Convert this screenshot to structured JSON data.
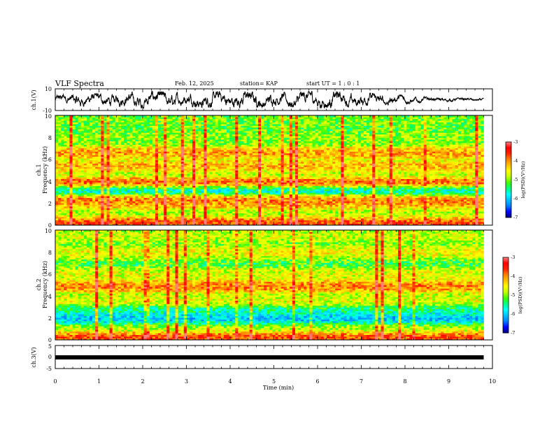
{
  "header": {
    "title": "VLF Spectra",
    "date": "Feb. 12, 2025",
    "station": "station= KAP",
    "start": "start  UT =   1 : 0  : 1"
  },
  "colorbar": {
    "label": "log(PSD)(V²/Hz)",
    "ticks": [
      "-3",
      "-4",
      "-5",
      "-6",
      "-7"
    ],
    "colors": [
      "#000080",
      "#0000ff",
      "#0080ff",
      "#00c0ff",
      "#00ffff",
      "#00ff80",
      "#40ff00",
      "#c0ff00",
      "#ffff00",
      "#ffc000",
      "#ff8000",
      "#ff2000",
      "#ff0000",
      "#ff8080",
      "#ffffff"
    ]
  },
  "chart_data": [
    {
      "type": "line",
      "name": "ch1-waveform",
      "ylabel": "ch.1(V)",
      "ylim": [
        -10,
        10
      ],
      "yticks": [
        "10",
        "-10"
      ],
      "x_range_min": [
        0,
        9.8
      ],
      "envelope": [
        {
          "t": 0.0,
          "amp": 3
        },
        {
          "t": 0.5,
          "amp": 5
        },
        {
          "t": 1.0,
          "amp": 4
        },
        {
          "t": 2.0,
          "amp": 6
        },
        {
          "t": 3.0,
          "amp": 5
        },
        {
          "t": 4.0,
          "amp": 6
        },
        {
          "t": 5.0,
          "amp": 5
        },
        {
          "t": 6.0,
          "amp": 6
        },
        {
          "t": 7.0,
          "amp": 5
        },
        {
          "t": 8.0,
          "amp": 3
        },
        {
          "t": 8.7,
          "amp": 1.5
        },
        {
          "t": 9.8,
          "amp": 1
        }
      ]
    },
    {
      "type": "heatmap",
      "name": "ch1-spectrogram",
      "ylabel": "ch.1\nFrequency (kHz)",
      "ylim": [
        0,
        10
      ],
      "yticks": [
        "0",
        "2",
        "4",
        "6",
        "8",
        "10"
      ],
      "colorscale_range": [
        -7,
        -3
      ],
      "bands": [
        {
          "f": 0.3,
          "level": -3.2
        },
        {
          "f": 1.0,
          "level": -4.8
        },
        {
          "f": 1.9,
          "level": -4.0
        },
        {
          "f": 2.3,
          "level": -3.6
        },
        {
          "f": 3.2,
          "level": -6.0
        },
        {
          "f": 3.9,
          "level": -3.3
        },
        {
          "f": 4.8,
          "level": -4.8
        },
        {
          "f": 5.3,
          "level": -3.8
        },
        {
          "f": 6.6,
          "level": -3.8
        },
        {
          "f": 8.0,
          "level": -4.9
        },
        {
          "f": 9.5,
          "level": -5.0
        }
      ]
    },
    {
      "type": "heatmap",
      "name": "ch2-spectrogram",
      "ylabel": "ch.2\nFrequency (kHz)",
      "ylim": [
        0,
        10
      ],
      "yticks": [
        "0",
        "2",
        "4",
        "6",
        "8",
        "10"
      ],
      "colorscale_range": [
        -7,
        -3
      ],
      "bands": [
        {
          "f": 0.3,
          "level": -3.2
        },
        {
          "f": 1.0,
          "level": -4.8
        },
        {
          "f": 2.0,
          "level": -6.3
        },
        {
          "f": 2.6,
          "level": -5.6
        },
        {
          "f": 3.6,
          "level": -4.5
        },
        {
          "f": 4.9,
          "level": -3.6
        },
        {
          "f": 6.0,
          "level": -4.5
        },
        {
          "f": 8.0,
          "level": -4.4
        },
        {
          "f": 9.5,
          "level": -4.6
        }
      ]
    },
    {
      "type": "line",
      "name": "ch3-trace",
      "ylabel": "ch.3(V)",
      "ylim": [
        -5,
        5
      ],
      "yticks": [
        "5",
        "0",
        "-5"
      ],
      "value": 0,
      "x_range_min": [
        0,
        9.8
      ]
    }
  ],
  "xaxis": {
    "label": "Time (min)",
    "ticks": [
      "0",
      "1",
      "2",
      "3",
      "4",
      "5",
      "6",
      "7",
      "8",
      "9",
      "10"
    ],
    "range": [
      0,
      10
    ]
  }
}
